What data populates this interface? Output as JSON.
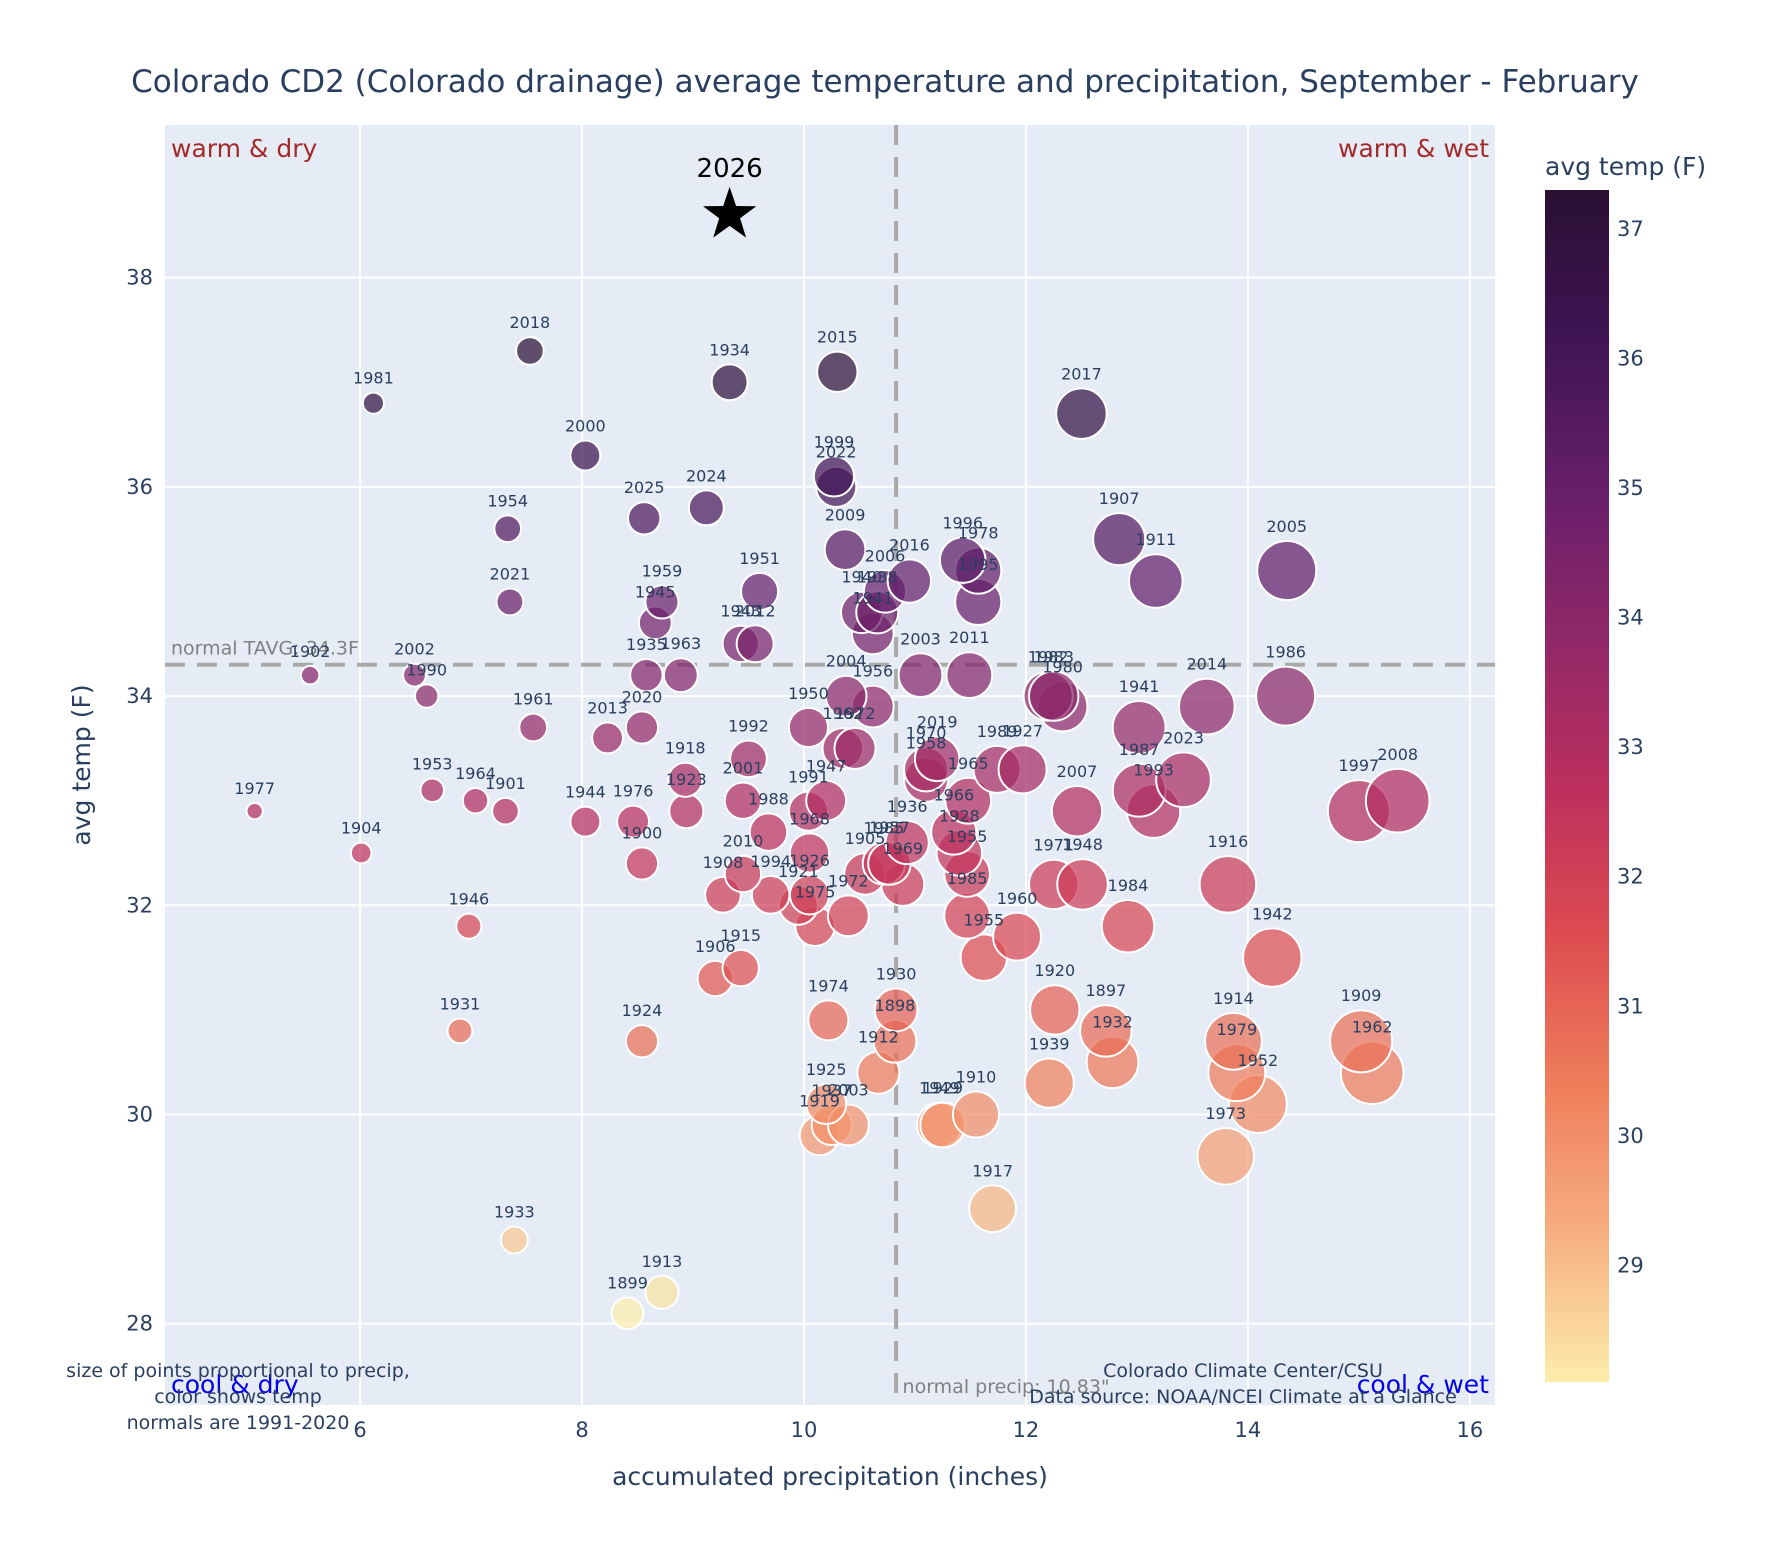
{
  "chart_data": {
    "type": "scatter",
    "title": "Colorado CD2 (Colorado drainage) average temperature and precipitation, September - February",
    "xlabel": "accumulated precipitation (inches)",
    "ylabel": "avg temp (F)",
    "xlim": [
      4.3,
      16.3
    ],
    "ylim": [
      27.2,
      39.2
    ],
    "xticks": [
      6,
      8,
      10,
      12,
      14,
      16
    ],
    "yticks": [
      28,
      30,
      32,
      34,
      36,
      38
    ],
    "grid": true,
    "colorbar": {
      "title": "avg temp (F)",
      "range": [
        28.1,
        37.3
      ],
      "ticks": [
        29,
        30,
        31,
        32,
        33,
        34,
        35,
        36,
        37
      ],
      "colors": [
        "#fcedaa",
        "#f6ae80",
        "#ef7d5a",
        "#dd4c50",
        "#bc2f5d",
        "#902868",
        "#661e6b",
        "#3f1454",
        "#2a1032"
      ]
    },
    "reference_lines": {
      "normal_temp": 34.3,
      "normal_temp_label": "normal TAVG: 34.3F",
      "normal_precip": 10.83,
      "normal_precip_label": "normal precip: 10.83\""
    },
    "quadrant_labels": {
      "top_left": "warm & dry",
      "top_right": "warm & wet",
      "bottom_left": "cool & dry",
      "bottom_right": "cool & wet"
    },
    "highlight": {
      "label": "2026",
      "x": 9.33,
      "y": 38.6,
      "marker": "star"
    },
    "points": [
      {
        "year": "1981",
        "x": 6.12,
        "y": 36.8
      },
      {
        "year": "2018",
        "x": 7.53,
        "y": 37.3
      },
      {
        "year": "1934",
        "x": 9.33,
        "y": 37.0
      },
      {
        "year": "2015",
        "x": 10.3,
        "y": 37.1
      },
      {
        "year": "2017",
        "x": 12.5,
        "y": 36.7
      },
      {
        "year": "2000",
        "x": 8.03,
        "y": 36.3
      },
      {
        "year": "1999",
        "x": 10.27,
        "y": 36.1
      },
      {
        "year": "2022",
        "x": 10.29,
        "y": 36.0
      },
      {
        "year": "1954",
        "x": 7.33,
        "y": 35.6
      },
      {
        "year": "2025",
        "x": 8.56,
        "y": 35.7
      },
      {
        "year": "2024",
        "x": 9.12,
        "y": 35.8
      },
      {
        "year": "2009",
        "x": 10.37,
        "y": 35.4
      },
      {
        "year": "1907",
        "x": 12.84,
        "y": 35.5
      },
      {
        "year": "1911",
        "x": 13.17,
        "y": 35.1
      },
      {
        "year": "2005",
        "x": 14.35,
        "y": 35.2
      },
      {
        "year": "2021",
        "x": 7.35,
        "y": 34.9
      },
      {
        "year": "1959",
        "x": 8.72,
        "y": 34.9
      },
      {
        "year": "1945",
        "x": 8.66,
        "y": 34.7
      },
      {
        "year": "1951",
        "x": 9.6,
        "y": 35.0
      },
      {
        "year": "1940",
        "x": 10.52,
        "y": 34.8
      },
      {
        "year": "2006",
        "x": 10.73,
        "y": 35.0
      },
      {
        "year": "1938",
        "x": 10.66,
        "y": 34.8
      },
      {
        "year": "2016",
        "x": 10.95,
        "y": 35.1
      },
      {
        "year": "1996",
        "x": 11.43,
        "y": 35.3
      },
      {
        "year": "1978",
        "x": 11.57,
        "y": 35.2
      },
      {
        "year": "1995",
        "x": 11.57,
        "y": 34.9
      },
      {
        "year": "1941b",
        "x": 10.62,
        "y": 34.6
      },
      {
        "year": "1943",
        "x": 9.43,
        "y": 34.5
      },
      {
        "year": "2012",
        "x": 9.56,
        "y": 34.5
      },
      {
        "year": "1935",
        "x": 8.58,
        "y": 34.2
      },
      {
        "year": "1963",
        "x": 8.89,
        "y": 34.2
      },
      {
        "year": "1902",
        "x": 5.55,
        "y": 34.2
      },
      {
        "year": "2002",
        "x": 6.49,
        "y": 34.2
      },
      {
        "year": "1990",
        "x": 6.6,
        "y": 34.0
      },
      {
        "year": "2003",
        "x": 11.05,
        "y": 34.2
      },
      {
        "year": "2011",
        "x": 11.49,
        "y": 34.2
      },
      {
        "year": "1982",
        "x": 12.2,
        "y": 34.0
      },
      {
        "year": "1983",
        "x": 12.25,
        "y": 34.0
      },
      {
        "year": "1980",
        "x": 12.33,
        "y": 33.9
      },
      {
        "year": "2014",
        "x": 13.63,
        "y": 33.9
      },
      {
        "year": "1986",
        "x": 14.34,
        "y": 34.0
      },
      {
        "year": "1961",
        "x": 7.56,
        "y": 33.7
      },
      {
        "year": "2013",
        "x": 8.23,
        "y": 33.6
      },
      {
        "year": "2020",
        "x": 8.54,
        "y": 33.7
      },
      {
        "year": "2004",
        "x": 10.38,
        "y": 34.0
      },
      {
        "year": "1956",
        "x": 10.62,
        "y": 33.9
      },
      {
        "year": "1950",
        "x": 10.04,
        "y": 33.7
      },
      {
        "year": "1962b",
        "x": 10.35,
        "y": 33.5
      },
      {
        "year": "1972b",
        "x": 10.46,
        "y": 33.5
      },
      {
        "year": "1992",
        "x": 9.5,
        "y": 33.4
      },
      {
        "year": "1918",
        "x": 8.93,
        "y": 33.2
      },
      {
        "year": "2001",
        "x": 9.45,
        "y": 33.0
      },
      {
        "year": "1947",
        "x": 10.2,
        "y": 33.0
      },
      {
        "year": "2019",
        "x": 11.2,
        "y": 33.4
      },
      {
        "year": "1970",
        "x": 11.1,
        "y": 33.3
      },
      {
        "year": "1989",
        "x": 11.74,
        "y": 33.3
      },
      {
        "year": "1927",
        "x": 11.97,
        "y": 33.3
      },
      {
        "year": "1941",
        "x": 13.02,
        "y": 33.7
      },
      {
        "year": "2023",
        "x": 13.42,
        "y": 33.2
      },
      {
        "year": "1987",
        "x": 13.02,
        "y": 33.1
      },
      {
        "year": "1993",
        "x": 13.15,
        "y": 32.9
      },
      {
        "year": "1953",
        "x": 6.65,
        "y": 33.1
      },
      {
        "year": "1964",
        "x": 7.04,
        "y": 33.0
      },
      {
        "year": "1901",
        "x": 7.31,
        "y": 32.9
      },
      {
        "year": "1977",
        "x": 5.05,
        "y": 32.9
      },
      {
        "year": "1944",
        "x": 8.03,
        "y": 32.8
      },
      {
        "year": "1976",
        "x": 8.46,
        "y": 32.8
      },
      {
        "year": "1923",
        "x": 8.94,
        "y": 32.9
      },
      {
        "year": "1988",
        "x": 9.68,
        "y": 32.7
      },
      {
        "year": "1991",
        "x": 10.04,
        "y": 32.9
      },
      {
        "year": "1958",
        "x": 11.1,
        "y": 33.2
      },
      {
        "year": "1965",
        "x": 11.48,
        "y": 33.0
      },
      {
        "year": "2007",
        "x": 12.46,
        "y": 32.9
      },
      {
        "year": "1997",
        "x": 15.0,
        "y": 32.9
      },
      {
        "year": "2008",
        "x": 15.35,
        "y": 33.0
      },
      {
        "year": "1904",
        "x": 6.01,
        "y": 32.5
      },
      {
        "year": "1900",
        "x": 8.54,
        "y": 32.4
      },
      {
        "year": "1936",
        "x": 10.93,
        "y": 32.6
      },
      {
        "year": "1966",
        "x": 11.35,
        "y": 32.7
      },
      {
        "year": "1928",
        "x": 11.4,
        "y": 32.5
      },
      {
        "year": "1968",
        "x": 10.05,
        "y": 32.5
      },
      {
        "year": "1985b",
        "x": 10.72,
        "y": 32.4
      },
      {
        "year": "1957",
        "x": 10.77,
        "y": 32.4
      },
      {
        "year": "2010",
        "x": 9.45,
        "y": 32.3
      },
      {
        "year": "1908",
        "x": 9.27,
        "y": 32.1
      },
      {
        "year": "1994",
        "x": 9.7,
        "y": 32.1
      },
      {
        "year": "1926",
        "x": 10.05,
        "y": 32.1
      },
      {
        "year": "1921",
        "x": 9.95,
        "y": 32.0
      },
      {
        "year": "1905",
        "x": 10.55,
        "y": 32.3
      },
      {
        "year": "1969",
        "x": 10.89,
        "y": 32.2
      },
      {
        "year": "1972",
        "x": 10.4,
        "y": 31.9
      },
      {
        "year": "1975",
        "x": 10.1,
        "y": 31.8
      },
      {
        "year": "1955",
        "x": 11.47,
        "y": 32.3
      },
      {
        "year": "1971",
        "x": 12.25,
        "y": 32.2
      },
      {
        "year": "1948",
        "x": 12.51,
        "y": 32.2
      },
      {
        "year": "1916",
        "x": 13.82,
        "y": 32.2
      },
      {
        "year": "1946",
        "x": 6.98,
        "y": 31.8
      },
      {
        "year": "1985",
        "x": 11.47,
        "y": 31.9
      },
      {
        "year": "1960",
        "x": 11.92,
        "y": 31.7
      },
      {
        "year": "1984",
        "x": 12.92,
        "y": 31.8
      },
      {
        "year": "1942",
        "x": 14.22,
        "y": 31.5
      },
      {
        "year": "1915",
        "x": 9.43,
        "y": 31.4
      },
      {
        "year": "1906",
        "x": 9.2,
        "y": 31.3
      },
      {
        "year": "1955b",
        "x": 11.62,
        "y": 31.5
      },
      {
        "year": "1974",
        "x": 10.22,
        "y": 30.9
      },
      {
        "year": "1930",
        "x": 10.83,
        "y": 31.0
      },
      {
        "year": "1898",
        "x": 10.82,
        "y": 30.7
      },
      {
        "year": "1931",
        "x": 6.9,
        "y": 30.8
      },
      {
        "year": "1924",
        "x": 8.54,
        "y": 30.7
      },
      {
        "year": "1920",
        "x": 12.26,
        "y": 31.0
      },
      {
        "year": "1897",
        "x": 12.72,
        "y": 30.8
      },
      {
        "year": "1932",
        "x": 12.78,
        "y": 30.5
      },
      {
        "year": "1914",
        "x": 13.87,
        "y": 30.7
      },
      {
        "year": "1979",
        "x": 13.9,
        "y": 30.4
      },
      {
        "year": "1909",
        "x": 15.02,
        "y": 30.7
      },
      {
        "year": "1962",
        "x": 15.12,
        "y": 30.4
      },
      {
        "year": "1912",
        "x": 10.67,
        "y": 30.4
      },
      {
        "year": "1939",
        "x": 12.21,
        "y": 30.3
      },
      {
        "year": "1952",
        "x": 14.09,
        "y": 30.1
      },
      {
        "year": "1925",
        "x": 10.2,
        "y": 30.1
      },
      {
        "year": "1937",
        "x": 10.25,
        "y": 29.9
      },
      {
        "year": "2003b",
        "x": 10.4,
        "y": 29.9
      },
      {
        "year": "1919",
        "x": 10.14,
        "y": 29.8
      },
      {
        "year": "1949",
        "x": 11.22,
        "y": 29.9
      },
      {
        "year": "1929",
        "x": 11.25,
        "y": 29.9
      },
      {
        "year": "1910",
        "x": 11.55,
        "y": 30.0
      },
      {
        "year": "1973",
        "x": 13.8,
        "y": 29.6
      },
      {
        "year": "1917",
        "x": 11.7,
        "y": 29.1
      },
      {
        "year": "1933",
        "x": 7.39,
        "y": 28.8
      },
      {
        "year": "1913",
        "x": 8.72,
        "y": 28.3
      },
      {
        "year": "1899",
        "x": 8.41,
        "y": 28.1
      }
    ]
  },
  "notes": {
    "left_line1": "size of points proportional to precip,",
    "left_line2": "color shows temp",
    "left_line3": "normals are 1991-2020",
    "right_line1": "Colorado Climate Center/CSU",
    "right_line2": "Data source: NOAA/NCEI Climate at a Glance"
  }
}
